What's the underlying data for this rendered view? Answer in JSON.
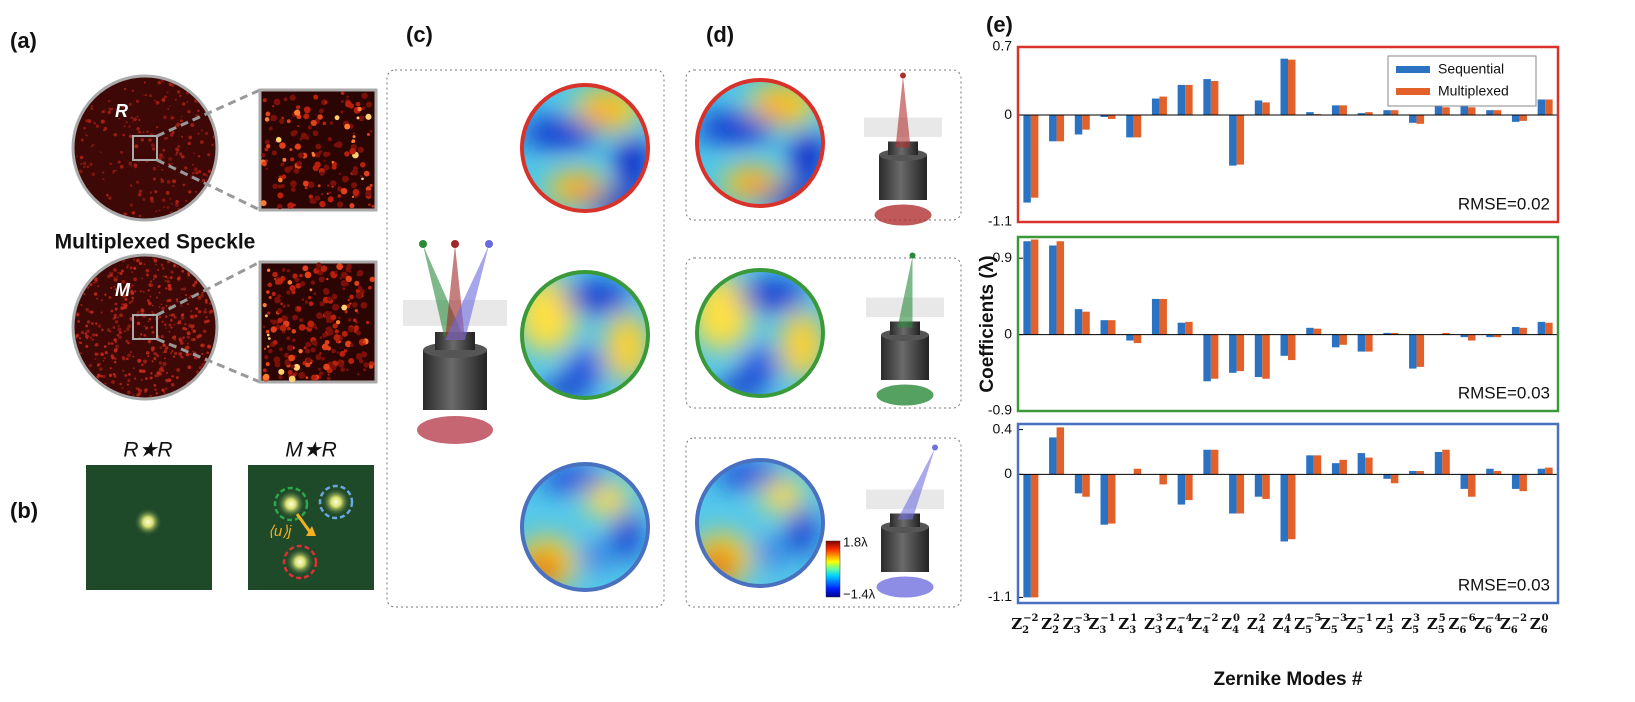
{
  "panels": {
    "a": {
      "label": "(a)",
      "r_label": "R",
      "m_label": "M",
      "caption": "Multiplexed Speckle"
    },
    "b": {
      "label": "(b)",
      "left_title": "R★R",
      "right_title": "M★R",
      "shift_label": "⟨u⟩j"
    },
    "c": {
      "label": "(c)"
    },
    "d": {
      "label": "(d)",
      "colorbar_max": "1.8λ",
      "colorbar_min": "−1.4λ"
    },
    "e": {
      "label": "(e)"
    }
  },
  "chart_data": [
    {
      "type": "bar",
      "ylim": [
        -1.1,
        0.7
      ],
      "yticks": [
        -1.1,
        0,
        0.7
      ],
      "frame_color": "#d8322a",
      "legend": "upper right",
      "annotation": "RMSE=0.02",
      "series": [
        {
          "name": "Sequential",
          "color": "#2b73c2",
          "values": [
            -0.9,
            -0.27,
            -0.2,
            -0.02,
            -0.23,
            0.17,
            0.31,
            0.37,
            -0.52,
            0.15,
            0.58,
            0.03,
            0.1,
            0.02,
            0.05,
            -0.08,
            0.1,
            0.09,
            0.05,
            -0.07,
            0.16
          ]
        },
        {
          "name": "Multiplexed",
          "color": "#e2612b",
          "values": [
            -0.85,
            -0.27,
            -0.15,
            -0.04,
            -0.23,
            0.19,
            0.31,
            0.35,
            -0.51,
            0.13,
            0.57,
            0.01,
            0.1,
            0.03,
            0.05,
            -0.09,
            0.08,
            0.08,
            0.05,
            -0.06,
            0.16
          ]
        }
      ]
    },
    {
      "type": "bar",
      "ylim": [
        -0.9,
        1.15
      ],
      "yticks": [
        -0.9,
        0,
        0.9
      ],
      "frame_color": "#3a9a3a",
      "annotation": "RMSE=0.03",
      "ylabel": "Coefficients (λ)",
      "series": [
        {
          "color": "#2b73c2",
          "values": [
            1.1,
            1.05,
            0.3,
            0.17,
            -0.07,
            0.42,
            0.14,
            -0.55,
            -0.45,
            -0.5,
            -0.25,
            0.08,
            -0.15,
            -0.2,
            0.02,
            -0.4,
            0.0,
            -0.03,
            -0.03,
            0.09,
            0.15
          ]
        },
        {
          "color": "#e2612b",
          "values": [
            1.12,
            1.1,
            0.27,
            0.17,
            -0.1,
            0.42,
            0.15,
            -0.52,
            -0.43,
            -0.52,
            -0.3,
            0.07,
            -0.12,
            -0.2,
            0.02,
            -0.38,
            0.02,
            -0.07,
            -0.03,
            0.08,
            0.14
          ]
        }
      ]
    },
    {
      "type": "bar",
      "ylim": [
        -1.15,
        0.45
      ],
      "yticks": [
        -1.1,
        0,
        0.4
      ],
      "frame_color": "#4a70c0",
      "annotation": "RMSE=0.03",
      "xlabel": "Zernike Modes #",
      "categories": [
        {
          "base": "Z",
          "sub": "2",
          "sup": "−2"
        },
        {
          "base": "Z",
          "sub": "2",
          "sup": "2"
        },
        {
          "base": "Z",
          "sub": "3",
          "sup": "−3"
        },
        {
          "base": "Z",
          "sub": "3",
          "sup": "−1"
        },
        {
          "base": "Z",
          "sub": "3",
          "sup": "1"
        },
        {
          "base": "Z",
          "sub": "3",
          "sup": "3"
        },
        {
          "base": "Z",
          "sub": "4",
          "sup": "−4"
        },
        {
          "base": "Z",
          "sub": "4",
          "sup": "−2"
        },
        {
          "base": "Z",
          "sub": "4",
          "sup": "0"
        },
        {
          "base": "Z",
          "sub": "4",
          "sup": "2"
        },
        {
          "base": "Z",
          "sub": "4",
          "sup": "4"
        },
        {
          "base": "Z",
          "sub": "5",
          "sup": "−5"
        },
        {
          "base": "Z",
          "sub": "5",
          "sup": "−3"
        },
        {
          "base": "Z",
          "sub": "5",
          "sup": "−1"
        },
        {
          "base": "Z",
          "sub": "5",
          "sup": "1"
        },
        {
          "base": "Z",
          "sub": "5",
          "sup": "3"
        },
        {
          "base": "Z",
          "sub": "5",
          "sup": "5"
        },
        {
          "base": "Z",
          "sub": "6",
          "sup": "−6"
        },
        {
          "base": "Z",
          "sub": "6",
          "sup": "−4"
        },
        {
          "base": "Z",
          "sub": "6",
          "sup": "−2"
        },
        {
          "base": "Z",
          "sub": "6",
          "sup": "0"
        }
      ],
      "series": [
        {
          "color": "#2b73c2",
          "values": [
            -1.1,
            0.33,
            -0.17,
            -0.45,
            0.0,
            0.0,
            -0.27,
            0.22,
            -0.35,
            -0.2,
            -0.6,
            0.17,
            0.1,
            0.19,
            -0.04,
            0.03,
            0.2,
            -0.13,
            0.05,
            -0.13,
            0.05
          ]
        },
        {
          "color": "#e2612b",
          "values": [
            -1.1,
            0.42,
            -0.2,
            -0.44,
            0.05,
            -0.09,
            -0.23,
            0.22,
            -0.35,
            -0.22,
            -0.58,
            0.17,
            0.13,
            0.15,
            -0.08,
            0.03,
            0.22,
            -0.2,
            0.03,
            -0.15,
            0.06
          ]
        }
      ]
    }
  ]
}
